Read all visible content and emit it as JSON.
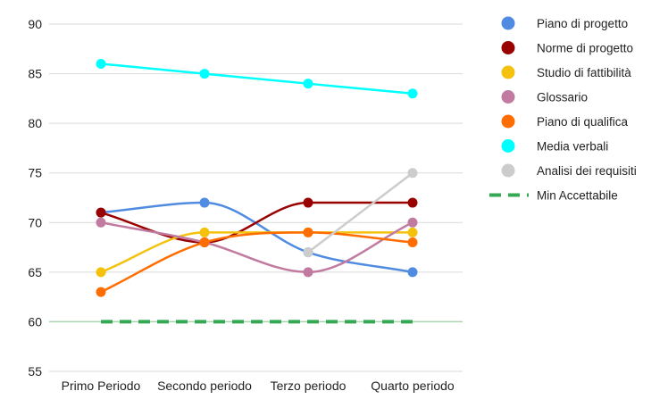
{
  "chart_data": {
    "type": "line",
    "categories": [
      "Primo Periodo",
      "Secondo periodo",
      "Terzo periodo",
      "Quarto periodo"
    ],
    "ylim": [
      55,
      90
    ],
    "yticks": [
      55,
      60,
      65,
      70,
      75,
      80,
      85,
      90
    ],
    "grid": true,
    "legend_position": "right",
    "series": [
      {
        "name": "Piano di progetto",
        "color": "#4f8be0",
        "values": [
          71,
          72,
          67,
          65
        ],
        "smooth": true
      },
      {
        "name": "Norme di progetto",
        "color": "#990000",
        "values": [
          71,
          68,
          72,
          72
        ],
        "smooth": true
      },
      {
        "name": "Studio di fattibilità",
        "color": "#f4c20d",
        "values": [
          65,
          69,
          69,
          69
        ],
        "smooth": true
      },
      {
        "name": "Glossario",
        "color": "#c27ba0",
        "values": [
          70,
          68,
          65,
          70
        ],
        "smooth": true
      },
      {
        "name": "Piano di qualifica",
        "color": "#ff6d01",
        "values": [
          63,
          68,
          69,
          68
        ],
        "smooth": true
      },
      {
        "name": "Media verbali",
        "color": "#00ffff",
        "values": [
          86,
          85,
          84,
          83
        ],
        "smooth": false
      },
      {
        "name": "Analisi dei requisiti",
        "color": "#cccccc",
        "values": [
          null,
          null,
          67,
          75
        ],
        "smooth": false
      }
    ],
    "threshold": {
      "name": "Min Accettabile",
      "color": "#34a853",
      "value": 60
    }
  }
}
